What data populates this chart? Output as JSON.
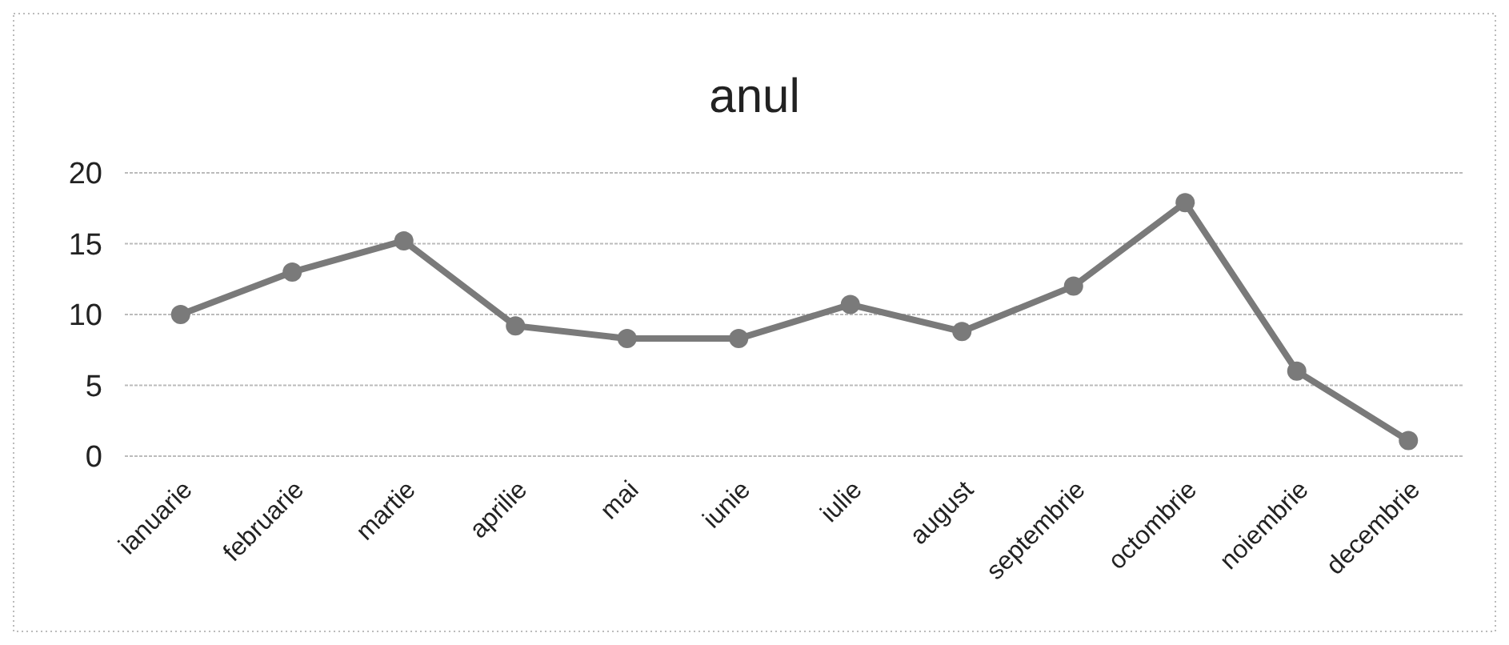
{
  "chart_data": {
    "type": "line",
    "title": "anul",
    "categories": [
      "ianuarie",
      "februarie",
      "martie",
      "aprilie",
      "mai",
      "iunie",
      "iulie",
      "august",
      "septembrie",
      "octombrie",
      "noiembrie",
      "decembrie"
    ],
    "series": [
      {
        "color": "#7a7a7a",
        "values": [
          10,
          13,
          15.2,
          9.2,
          8.3,
          8.3,
          10.7,
          8.8,
          12,
          17.9,
          6,
          1.1
        ]
      }
    ],
    "ylim": [
      0,
      20
    ],
    "yticks": [
      0,
      5,
      10,
      15,
      20
    ],
    "grid": "y",
    "marker": "circle",
    "line_style": "solid"
  }
}
